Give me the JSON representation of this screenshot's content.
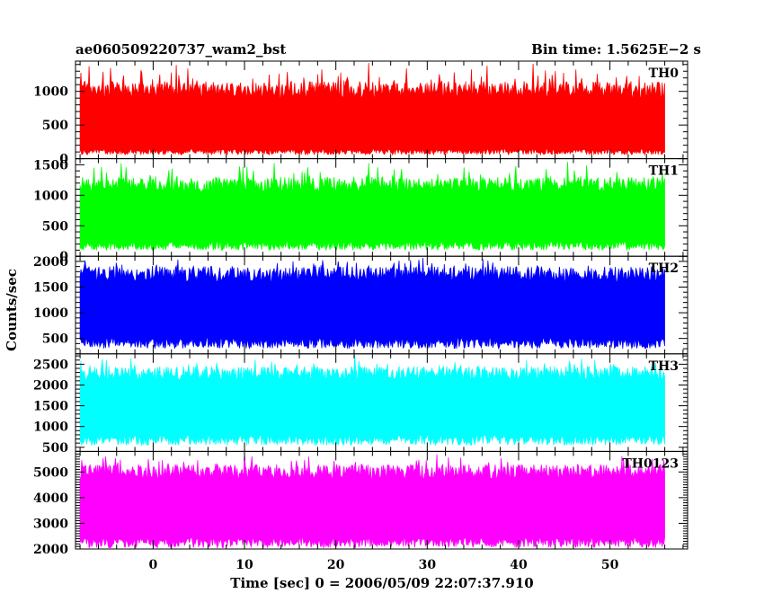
{
  "header": {
    "title": "ae060509220737_wam2_bst",
    "bin_time": "Bin time: 1.5625E−2 s"
  },
  "chart_data": {
    "type": "line",
    "title": "ae060509220737_wam2_bst",
    "xlabel": "Time [sec] 0 = 2006/05/09 22:07:37.910",
    "ylabel": "Counts/sec",
    "xlim": [
      -8.5,
      58.5
    ],
    "xticks": [
      0,
      10,
      20,
      30,
      40,
      50
    ],
    "x_range": [
      -8.0,
      56.0
    ],
    "bin_time": 0.015625,
    "series": [
      {
        "name": "TH0",
        "color": "#ff0000",
        "ylim": [
          0,
          1450
        ],
        "yticks": [
          0,
          500,
          1000
        ],
        "base": [
          60,
          150
        ],
        "high": [
          900,
          1150
        ]
      },
      {
        "name": "TH1",
        "color": "#00ff00",
        "ylim": [
          0,
          1600
        ],
        "yticks": [
          0,
          500,
          1000,
          1500
        ],
        "base": [
          100,
          250
        ],
        "high": [
          1050,
          1300
        ]
      },
      {
        "name": "TH2",
        "color": "#0000ff",
        "ylim": [
          200,
          2100
        ],
        "yticks": [
          500,
          1000,
          1500,
          2000
        ],
        "base": [
          300,
          520
        ],
        "high": [
          1600,
          1900
        ]
      },
      {
        "name": "TH3",
        "color": "#00ffff",
        "ylim": [
          400,
          2750
        ],
        "yticks": [
          500,
          1000,
          1500,
          2000,
          2500
        ],
        "base": [
          550,
          800
        ],
        "high": [
          2100,
          2450
        ]
      },
      {
        "name": "TH0123",
        "color": "#ff00ff",
        "ylim": [
          2000,
          5800
        ],
        "yticks": [
          2000,
          3000,
          4000,
          5000
        ],
        "base": [
          2050,
          2450
        ],
        "high": [
          4700,
          5300
        ]
      }
    ]
  }
}
